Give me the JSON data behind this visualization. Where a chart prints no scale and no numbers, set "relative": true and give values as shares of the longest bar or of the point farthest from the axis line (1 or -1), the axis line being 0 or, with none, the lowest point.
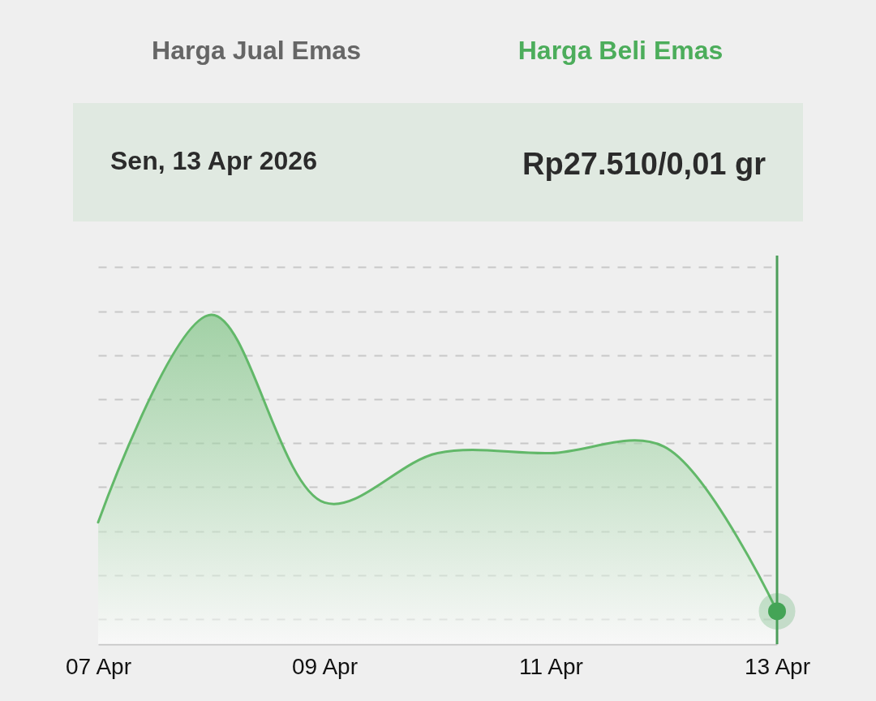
{
  "chart_data": {
    "type": "area",
    "title": "Harga Beli Emas",
    "annotations": [
      "Harga Jual Emas",
      "Sen, 13 Apr 2026",
      "Rp27.510/0,01 gr"
    ],
    "categories": [
      "07 Apr",
      null,
      "09 Apr",
      null,
      "11 Apr",
      null,
      "13 Apr"
    ],
    "relative": true,
    "series": [
      {
        "color": "#62b869",
        "values": [
          0.37,
          1,
          0.43,
          0.58,
          0.58,
          0.6,
          0.1
        ]
      },
      {
        "type": "scatter",
        "x": [
          "13 Apr"
        ],
        "values": [
          0.1
        ],
        "color": "#45a556",
        "marker": "circle"
      }
    ],
    "ref_lines": [
      {
        "axis": "x",
        "value": "13 Apr",
        "color": "#4c9e5a"
      }
    ],
    "grid": "y"
  }
}
